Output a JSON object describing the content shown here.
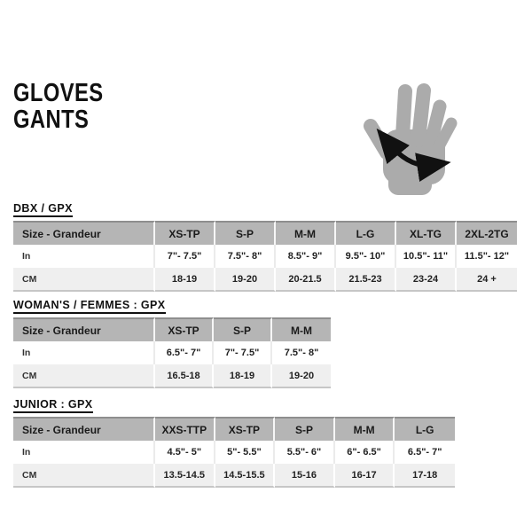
{
  "page": {
    "title_line1": "GLOVES",
    "title_line2": "GANTS"
  },
  "hand_icon": {
    "name": "hand-circumference-measure-icon",
    "hand_color": "#ababab",
    "arrow_color": "#111111"
  },
  "tables": [
    {
      "title": "DBX / GPX",
      "columns": [
        "Size - Grandeur",
        "XS-TP",
        "S-P",
        "M-M",
        "L-G",
        "XL-TG",
        "2XL-2TG"
      ],
      "rows": [
        {
          "label": "In",
          "values": [
            "7\"- 7.5\"",
            "7.5\"- 8\"",
            "8.5\"- 9\"",
            "9.5\"- 10\"",
            "10.5\"- 11\"",
            "11.5\"- 12\""
          ]
        },
        {
          "label": "CM",
          "values": [
            "18-19",
            "19-20",
            "20-21.5",
            "21.5-23",
            "23-24",
            "24 +"
          ]
        }
      ]
    },
    {
      "title": "WOMAN'S / FEMMES : GPX",
      "columns": [
        "Size - Grandeur",
        "XS-TP",
        "S-P",
        "M-M"
      ],
      "rows": [
        {
          "label": "In",
          "values": [
            "6.5\"- 7\"",
            "7\"- 7.5\"",
            "7.5\"- 8\""
          ]
        },
        {
          "label": "CM",
          "values": [
            "16.5-18",
            "18-19",
            "19-20"
          ]
        }
      ]
    },
    {
      "title": "JUNIOR : GPX",
      "columns": [
        "Size - Grandeur",
        "XXS-TTP",
        "XS-TP",
        "S-P",
        "M-M",
        "L-G"
      ],
      "rows": [
        {
          "label": "In",
          "values": [
            "4.5\"- 5\"",
            "5\"- 5.5\"",
            "5.5\"- 6\"",
            "6\"- 6.5\"",
            "6.5\"- 7\""
          ]
        },
        {
          "label": "CM",
          "values": [
            "13.5-14.5",
            "14.5-15.5",
            "15-16",
            "16-17",
            "17-18"
          ]
        }
      ]
    }
  ],
  "colors": {
    "header_bg": "#b5b5b5",
    "alt_row_bg": "#efefef",
    "table_bottom_border": "#c6c6c6",
    "text": "#1a1a1a"
  }
}
